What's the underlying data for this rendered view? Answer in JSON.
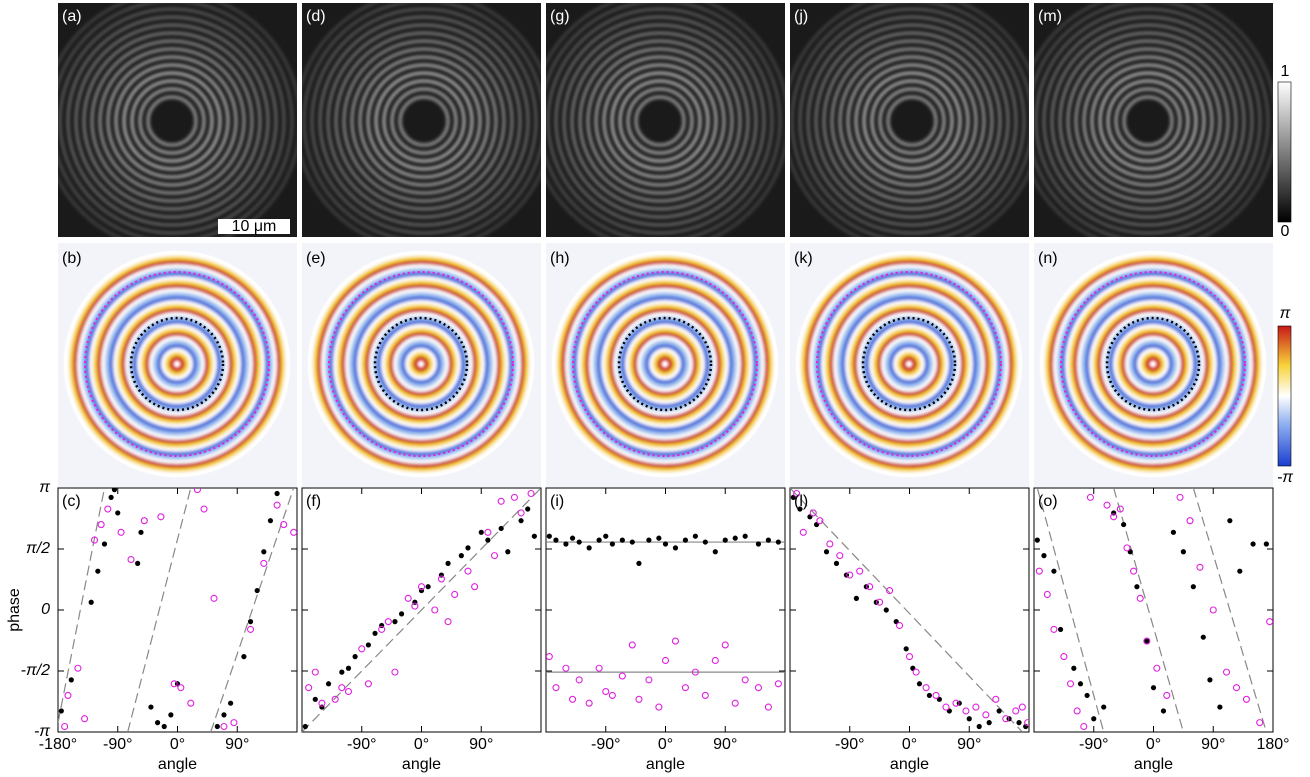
{
  "panels": {
    "intensity": [
      {
        "label": "(a)"
      },
      {
        "label": "(d)"
      },
      {
        "label": "(g)"
      },
      {
        "label": "(j)"
      },
      {
        "label": "(m)"
      }
    ],
    "phase": [
      {
        "label": "(b)"
      },
      {
        "label": "(e)"
      },
      {
        "label": "(h)"
      },
      {
        "label": "(k)"
      },
      {
        "label": "(n)"
      }
    ]
  },
  "scale_bar": "10 μm",
  "colorbars": {
    "intensity": {
      "max": "1",
      "min": "0"
    },
    "phase": {
      "max": "π",
      "min": "-π"
    }
  },
  "chart_data": [
    {
      "type": "scatter",
      "panel_label": "(c)",
      "x_label": "angle",
      "y_label": "phase",
      "xlim": [
        -180,
        180
      ],
      "ylim": [
        -3.1416,
        3.1416
      ],
      "xticks": [
        {
          "value": -180,
          "label": "-180°"
        },
        {
          "value": -90,
          "label": "-90°"
        },
        {
          "value": 0,
          "label": "0°"
        },
        {
          "value": 90,
          "label": "90°"
        }
      ],
      "yticks": [
        {
          "value": 3.1416,
          "label": "π"
        },
        {
          "value": 1.5708,
          "label": "π/2"
        },
        0,
        {
          "value": -1.5708,
          "label": "-π/2"
        },
        {
          "value": -3.1416,
          "label": "-π"
        }
      ],
      "series": [
        {
          "color": "#000000",
          "marker": "filled",
          "x": [
            -175,
            -160,
            -130,
            -120,
            -110,
            -100,
            -95,
            -90,
            -60,
            -55,
            -40,
            -30,
            -20,
            -10,
            0,
            60,
            70,
            80,
            100,
            110,
            120,
            130,
            140,
            150
          ],
          "values": [
            -2.6,
            -1.8,
            0.2,
            1.0,
            1.7,
            2.9,
            3.1,
            2.5,
            1.2,
            2.0,
            -2.5,
            -2.9,
            -3.0,
            -2.7,
            -1.9,
            -3.0,
            -2.7,
            -2.4,
            -1.2,
            -0.3,
            0.5,
            1.5,
            2.3,
            3.0
          ]
        },
        {
          "color": "#e020e0",
          "marker": "open",
          "x": [
            -170,
            -165,
            -150,
            -140,
            -125,
            -115,
            -105,
            -85,
            -70,
            -50,
            -25,
            -5,
            5,
            20,
            30,
            40,
            55,
            70,
            85,
            110,
            130,
            150,
            160,
            175
          ],
          "values": [
            -3.0,
            -2.2,
            -1.5,
            -2.8,
            1.8,
            2.2,
            2.6,
            2.0,
            1.3,
            2.3,
            2.4,
            -1.9,
            -2.0,
            -2.4,
            3.1,
            2.6,
            0.3,
            -3.0,
            -2.9,
            -0.5,
            1.2,
            2.7,
            2.2,
            2.0
          ]
        }
      ],
      "fit_lines": [
        {
          "color": "#888888",
          "dash": true,
          "x": [
            -180,
            -110
          ],
          "values": [
            -2.9,
            3.1416
          ]
        },
        {
          "color": "#888888",
          "dash": true,
          "x": [
            -75,
            20
          ],
          "values": [
            -3.1416,
            3.1416
          ]
        },
        {
          "color": "#888888",
          "dash": true,
          "x": [
            50,
            175
          ],
          "values": [
            -3.1416,
            3.1416
          ]
        }
      ]
    },
    {
      "type": "scatter",
      "panel_label": "(f)",
      "x_label": "angle",
      "xlim": [
        -180,
        180
      ],
      "ylim": [
        -3.1416,
        3.1416
      ],
      "xticks": [
        {
          "value": -90,
          "label": "-90°"
        },
        {
          "value": 0,
          "label": "0°"
        },
        {
          "value": 90,
          "label": "90°"
        }
      ],
      "series": [
        {
          "color": "#000000",
          "marker": "filled",
          "x": [
            -175,
            -160,
            -150,
            -140,
            -120,
            -110,
            -100,
            -80,
            -70,
            -60,
            -40,
            -30,
            -10,
            0,
            10,
            30,
            40,
            60,
            70,
            90,
            100,
            120,
            130,
            150,
            160,
            170
          ],
          "values": [
            -3.0,
            -2.3,
            -2.5,
            -1.9,
            -1.6,
            -1.5,
            -1.2,
            -0.9,
            -0.6,
            -0.4,
            -0.3,
            -0.1,
            0.2,
            0.5,
            0.6,
            0.9,
            1.2,
            1.4,
            1.6,
            2.0,
            1.8,
            2.1,
            1.5,
            2.3,
            2.6,
            1.9
          ]
        },
        {
          "color": "#e020e0",
          "marker": "open",
          "x": [
            -170,
            -160,
            -150,
            -130,
            -120,
            -110,
            -90,
            -80,
            -60,
            -50,
            -40,
            -20,
            -10,
            0,
            20,
            30,
            40,
            50,
            70,
            80,
            100,
            110,
            120,
            140,
            150,
            165
          ],
          "values": [
            -2.0,
            -1.6,
            -2.4,
            -2.3,
            -2.0,
            -2.1,
            -1.0,
            -1.9,
            -0.5,
            -0.3,
            -1.6,
            0.3,
            0.1,
            0.6,
            0.0,
            0.8,
            -0.3,
            0.4,
            1.0,
            0.6,
            2.0,
            1.4,
            2.8,
            2.9,
            2.5,
            3.0
          ]
        }
      ],
      "fit_lines": [
        {
          "color": "#888888",
          "dash": true,
          "x": [
            -180,
            180
          ],
          "values": [
            -3.1416,
            3.1416
          ]
        }
      ]
    },
    {
      "type": "scatter",
      "panel_label": "(i)",
      "x_label": "angle",
      "xlim": [
        -180,
        180
      ],
      "ylim": [
        -3.1416,
        3.1416
      ],
      "xticks": [
        {
          "value": -90,
          "label": "-90°"
        },
        {
          "value": 0,
          "label": "0°"
        },
        {
          "value": 90,
          "label": "90°"
        }
      ],
      "series": [
        {
          "color": "#000000",
          "marker": "filled",
          "x": [
            -175,
            -165,
            -150,
            -140,
            -130,
            -115,
            -100,
            -90,
            -80,
            -65,
            -50,
            -40,
            -25,
            -10,
            0,
            15,
            30,
            45,
            60,
            75,
            90,
            105,
            120,
            140,
            155,
            170
          ],
          "values": [
            1.9,
            1.8,
            1.7,
            1.85,
            1.75,
            1.6,
            1.8,
            1.9,
            1.7,
            1.8,
            1.75,
            1.2,
            1.8,
            1.85,
            1.7,
            1.6,
            1.8,
            1.9,
            1.75,
            1.5,
            1.8,
            1.85,
            1.9,
            1.7,
            1.8,
            1.75
          ]
        },
        {
          "color": "#e020e0",
          "marker": "open",
          "x": [
            -175,
            -165,
            -150,
            -140,
            -130,
            -115,
            -100,
            -90,
            -80,
            -65,
            -50,
            -40,
            -25,
            -10,
            0,
            15,
            30,
            45,
            60,
            75,
            90,
            105,
            120,
            140,
            155,
            170
          ],
          "values": [
            -1.2,
            -2.0,
            -1.5,
            -2.3,
            -1.8,
            -2.4,
            -1.5,
            -2.1,
            -2.2,
            -1.7,
            -0.9,
            -2.3,
            -1.8,
            -2.5,
            -1.3,
            -0.8,
            -2.0,
            -1.6,
            -2.2,
            -1.3,
            -0.9,
            -2.4,
            -1.8,
            -2.0,
            -2.5,
            -1.9
          ]
        }
      ],
      "fit_lines": [
        {
          "color": "#888888",
          "dash": false,
          "x": [
            -180,
            180
          ],
          "values": [
            1.75,
            1.75
          ]
        },
        {
          "color": "#888888",
          "dash": false,
          "x": [
            -180,
            180
          ],
          "values": [
            -1.6,
            -1.6
          ]
        }
      ]
    },
    {
      "type": "scatter",
      "panel_label": "(l)",
      "x_label": "angle",
      "xlim": [
        -180,
        180
      ],
      "ylim": [
        -3.1416,
        3.1416
      ],
      "xticks": [
        {
          "value": -90,
          "label": "-90°"
        },
        {
          "value": 0,
          "label": "0°"
        },
        {
          "value": 90,
          "label": "90°"
        }
      ],
      "series": [
        {
          "color": "#000000",
          "marker": "filled",
          "x": [
            -175,
            -165,
            -150,
            -140,
            -125,
            -110,
            -95,
            -80,
            -65,
            -50,
            -35,
            -20,
            -5,
            5,
            15,
            30,
            45,
            60,
            75,
            90,
            105,
            120,
            135,
            150,
            165,
            175
          ],
          "values": [
            2.9,
            2.6,
            2.4,
            2.2,
            1.5,
            1.2,
            0.9,
            0.3,
            0.6,
            0.2,
            0.0,
            -0.3,
            -1.0,
            -1.5,
            -1.9,
            -2.2,
            -2.3,
            -2.6,
            -2.4,
            -2.8,
            -3.0,
            -2.9,
            -2.6,
            -2.8,
            -2.9,
            -3.0
          ]
        },
        {
          "color": "#e020e0",
          "marker": "open",
          "x": [
            -170,
            -160,
            -145,
            -135,
            -120,
            -105,
            -90,
            -75,
            -60,
            -45,
            -30,
            -15,
            0,
            10,
            25,
            40,
            55,
            70,
            85,
            100,
            115,
            130,
            145,
            160,
            170,
            178
          ],
          "values": [
            3.0,
            2.0,
            2.5,
            2.3,
            1.7,
            1.4,
            0.9,
            1.0,
            0.6,
            0.2,
            0.5,
            -0.4,
            -1.2,
            -1.6,
            -2.0,
            -2.2,
            -2.5,
            -2.4,
            -2.6,
            -2.5,
            -2.7,
            -2.3,
            -2.8,
            -2.6,
            -2.5,
            -2.9
          ]
        }
      ],
      "fit_lines": [
        {
          "color": "#888888",
          "dash": true,
          "x": [
            -180,
            170
          ],
          "values": [
            3.1416,
            -3.1416
          ]
        }
      ]
    },
    {
      "type": "scatter",
      "panel_label": "(o)",
      "x_label": "angle",
      "xlim": [
        -180,
        180
      ],
      "ylim": [
        -3.1416,
        3.1416
      ],
      "xticks": [
        {
          "value": -90,
          "label": "-90°"
        },
        {
          "value": 0,
          "label": "0°"
        },
        {
          "value": 90,
          "label": "90°"
        },
        {
          "value": 180,
          "label": "180°"
        }
      ],
      "series": [
        {
          "color": "#000000",
          "marker": "filled",
          "x": [
            -175,
            -165,
            -150,
            -140,
            -120,
            -110,
            -100,
            -90,
            -75,
            -60,
            -45,
            -35,
            -25,
            -10,
            0,
            15,
            30,
            45,
            60,
            75,
            85,
            100,
            115,
            130,
            150,
            170
          ],
          "values": [
            1.8,
            1.4,
            1.0,
            -0.5,
            -1.5,
            -1.9,
            -2.2,
            -2.8,
            -2.5,
            2.5,
            2.2,
            1.5,
            0.6,
            -0.8,
            -2.0,
            -2.6,
            2.0,
            1.5,
            0.6,
            -0.7,
            -1.8,
            -2.5,
            2.3,
            1.0,
            1.7,
            1.7
          ]
        },
        {
          "color": "#e020e0",
          "marker": "open",
          "x": [
            -172,
            -160,
            -150,
            -135,
            -125,
            -115,
            -105,
            -95,
            -70,
            -60,
            -50,
            -40,
            -30,
            -20,
            -10,
            5,
            20,
            40,
            55,
            70,
            90,
            110,
            125,
            140,
            160,
            175
          ],
          "values": [
            1.0,
            0.4,
            -0.5,
            -1.2,
            -1.9,
            -2.6,
            -3.0,
            2.9,
            2.7,
            2.4,
            2.6,
            1.6,
            1.0,
            0.3,
            -0.8,
            -1.5,
            -2.2,
            2.9,
            2.3,
            1.1,
            0.0,
            -1.6,
            -2.0,
            -2.3,
            -2.9,
            -0.3
          ]
        }
      ],
      "fit_lines": [
        {
          "color": "#888888",
          "dash": true,
          "x": [
            -175,
            -75
          ],
          "values": [
            3.1416,
            -3.1416
          ]
        },
        {
          "color": "#888888",
          "dash": true,
          "x": [
            -60,
            45
          ],
          "values": [
            3.1416,
            -3.1416
          ]
        },
        {
          "color": "#888888",
          "dash": true,
          "x": [
            60,
            170
          ],
          "values": [
            3.1416,
            -3.1416
          ]
        }
      ]
    }
  ]
}
